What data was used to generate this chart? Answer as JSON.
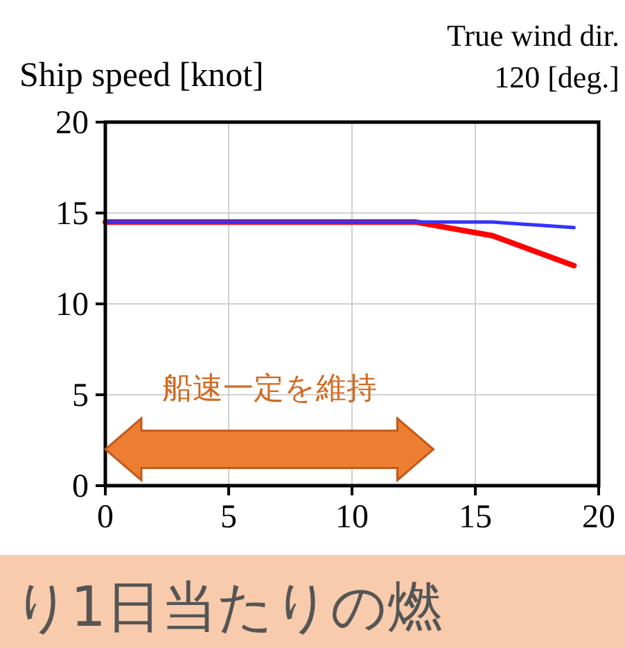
{
  "chart_data": {
    "type": "line",
    "title": "True wind dir.",
    "subtitle": "120 [deg.]",
    "ylabel": "Ship speed [knot]",
    "x": [
      0,
      12.6,
      15.7,
      19.0
    ],
    "series": [
      {
        "color": "#ff0000",
        "values": [
          14.5,
          14.5,
          13.75,
          12.1
        ]
      },
      {
        "color": "#3333ff",
        "values": [
          14.5,
          14.5,
          14.5,
          14.2
        ]
      }
    ],
    "xlim": [
      0,
      20
    ],
    "xticks": [
      0,
      5,
      10,
      15,
      20
    ],
    "ylim": [
      0,
      20
    ],
    "yticks": [
      0,
      5,
      10,
      15,
      20
    ],
    "grid": true,
    "marker": "none",
    "line_style": "solid",
    "annotations": [
      "船速一定を維持",
      "り1日当たりの燃"
    ]
  }
}
